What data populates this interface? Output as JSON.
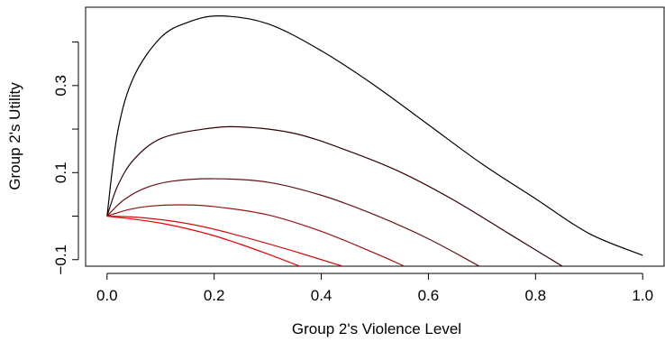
{
  "chart_data": {
    "type": "line",
    "xlabel": "Group 2's Violence Level",
    "ylabel": "Group 2's Utility",
    "xlim": [
      -0.04,
      1.04
    ],
    "ylim": [
      -0.115,
      0.48
    ],
    "x_ticks": [
      {
        "value": 0.0,
        "label": "0.0"
      },
      {
        "value": 0.2,
        "label": "0.2"
      },
      {
        "value": 0.4,
        "label": "0.4"
      },
      {
        "value": 0.6,
        "label": "0.6"
      },
      {
        "value": 0.8,
        "label": "0.8"
      },
      {
        "value": 1.0,
        "label": "1.0"
      }
    ],
    "y_ticks": [
      {
        "value": -0.1,
        "label": "−0.1"
      },
      {
        "value": 0.1,
        "label": "0.1"
      },
      {
        "value": 0.3,
        "label": "0.3"
      }
    ],
    "y_minor_ticks": [
      0.0,
      0.2,
      0.4
    ],
    "grid": false,
    "box": true,
    "series": [
      {
        "color": "#000000",
        "x": [
          0.0,
          0.02,
          0.05,
          0.1,
          0.15,
          0.21,
          0.3,
          0.4,
          0.5,
          0.6,
          0.7,
          0.8,
          0.9,
          1.0
        ],
        "y": [
          0.0,
          0.195,
          0.32,
          0.41,
          0.445,
          0.46,
          0.442,
          0.38,
          0.3,
          0.21,
          0.12,
          0.04,
          -0.04,
          -0.09
        ]
      },
      {
        "color": "#330000",
        "x": [
          0.0,
          0.02,
          0.05,
          0.1,
          0.18,
          0.25,
          0.35,
          0.45,
          0.55,
          0.65,
          0.75,
          0.85
        ],
        "y": [
          0.0,
          0.07,
          0.13,
          0.178,
          0.2,
          0.205,
          0.19,
          0.15,
          0.1,
          0.035,
          -0.04,
          -0.115
        ]
      },
      {
        "color": "#661111",
        "x": [
          0.0,
          0.03,
          0.07,
          0.12,
          0.2,
          0.3,
          0.4,
          0.5,
          0.6,
          0.695
        ],
        "y": [
          0.0,
          0.036,
          0.064,
          0.08,
          0.086,
          0.078,
          0.048,
          0.003,
          -0.052,
          -0.115
        ]
      },
      {
        "color": "#991111",
        "x": [
          0.0,
          0.04,
          0.08,
          0.135,
          0.2,
          0.3,
          0.4,
          0.5,
          0.555
        ],
        "y": [
          0.0,
          0.015,
          0.023,
          0.026,
          0.022,
          0.003,
          -0.035,
          -0.085,
          -0.115
        ]
      },
      {
        "color": "#cc1111",
        "x": [
          0.0,
          0.05,
          0.1,
          0.15,
          0.2,
          0.25,
          0.3,
          0.35,
          0.4,
          0.44
        ],
        "y": [
          0.0,
          -0.002,
          -0.008,
          -0.017,
          -0.03,
          -0.046,
          -0.063,
          -0.081,
          -0.1,
          -0.115
        ]
      },
      {
        "color": "#ee0000",
        "x": [
          0.0,
          0.05,
          0.1,
          0.15,
          0.2,
          0.25,
          0.3,
          0.36
        ],
        "y": [
          0.0,
          -0.007,
          -0.016,
          -0.029,
          -0.045,
          -0.065,
          -0.087,
          -0.115
        ]
      }
    ]
  }
}
